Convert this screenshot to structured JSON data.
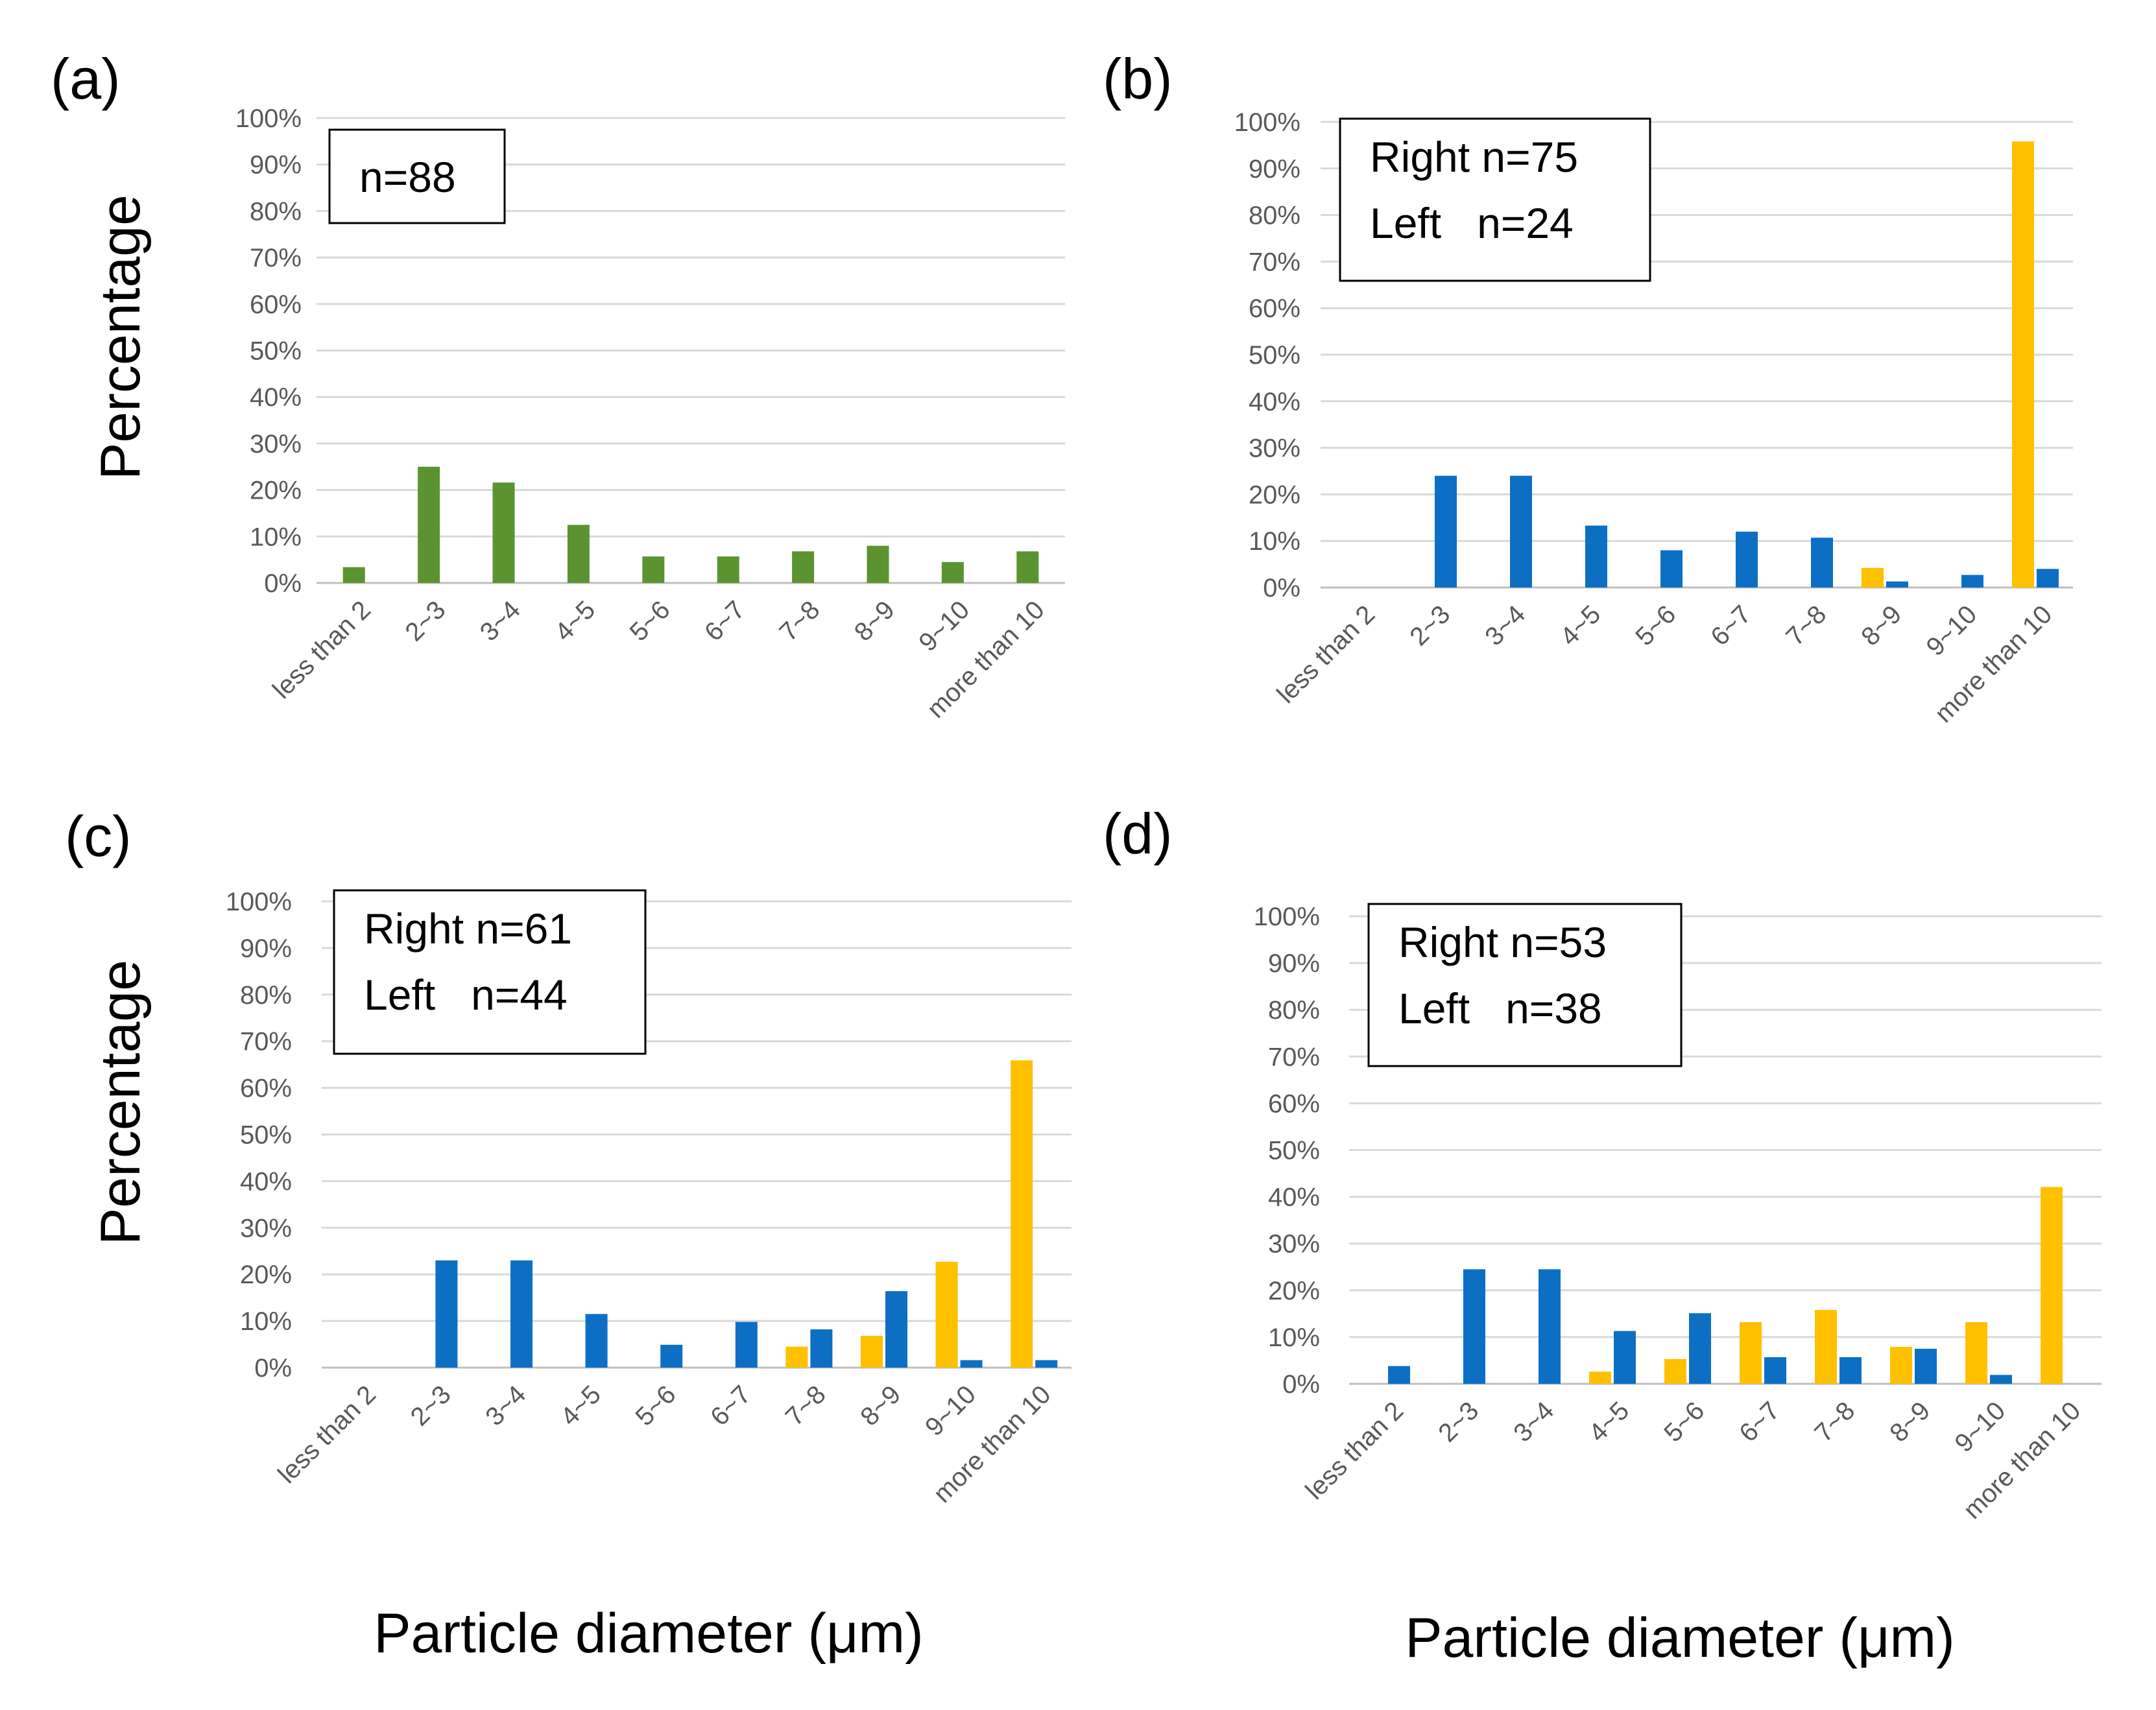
{
  "figure": {
    "ylabel_a": "Percentage",
    "ylabel_c": "Percentage",
    "xlabel_c": "Particle diameter (μm)",
    "xlabel_d": "Particle diameter (μm)"
  },
  "colors": {
    "single": "#5b9331",
    "right": "#0d6fc4",
    "left": "#ffc000"
  },
  "chart_data": [
    {
      "panel": "(a)",
      "type": "bar",
      "categories": [
        "less than 2",
        "2~3",
        "3~4",
        "4~5",
        "5~6",
        "6~7",
        "7~8",
        "8~9",
        "9~10",
        "more than 10"
      ],
      "series": [
        {
          "name": "n=88",
          "color": "#5b9331",
          "values": [
            3.4,
            25.0,
            21.6,
            12.5,
            5.7,
            5.7,
            6.8,
            8.0,
            4.5,
            6.8
          ]
        }
      ],
      "legend": [
        "n=88"
      ],
      "yticks": [
        "0%",
        "10%",
        "20%",
        "30%",
        "40%",
        "50%",
        "60%",
        "70%",
        "80%",
        "90%",
        "100%"
      ],
      "ylim": [
        0,
        100
      ],
      "ylabel": "Percentage"
    },
    {
      "panel": "(b)",
      "type": "bar",
      "categories": [
        "less than 2",
        "2~3",
        "3~4",
        "4~5",
        "5~6",
        "6~7",
        "7~8",
        "8~9",
        "9~10",
        "more than 10"
      ],
      "series": [
        {
          "name": "Left",
          "color": "#ffc000",
          "values": [
            0,
            0,
            0,
            0,
            0,
            0,
            0,
            4.2,
            0,
            95.8
          ]
        },
        {
          "name": "Right",
          "color": "#0d6fc4",
          "values": [
            0,
            24.0,
            24.0,
            13.3,
            8.0,
            12.0,
            10.7,
            1.3,
            2.7,
            4.0
          ]
        }
      ],
      "legend": [
        "Right n=75",
        "Left   n=24"
      ],
      "yticks": [
        "0%",
        "10%",
        "20%",
        "30%",
        "40%",
        "50%",
        "60%",
        "70%",
        "80%",
        "90%",
        "100%"
      ],
      "ylim": [
        0,
        100
      ]
    },
    {
      "panel": "(c)",
      "type": "bar",
      "categories": [
        "less than 2",
        "2~3",
        "3~4",
        "4~5",
        "5~6",
        "6~7",
        "7~8",
        "8~9",
        "9~10",
        "more than 10"
      ],
      "series": [
        {
          "name": "Left",
          "color": "#ffc000",
          "values": [
            0,
            0,
            0,
            0,
            0,
            0,
            4.5,
            6.8,
            22.7,
            65.9
          ]
        },
        {
          "name": "Right",
          "color": "#0d6fc4",
          "values": [
            0,
            23.0,
            23.0,
            11.5,
            4.9,
            9.8,
            8.2,
            16.4,
            1.6,
            1.6
          ]
        }
      ],
      "legend": [
        "Right n=61",
        "Left   n=44"
      ],
      "yticks": [
        "0%",
        "10%",
        "20%",
        "30%",
        "40%",
        "50%",
        "60%",
        "70%",
        "80%",
        "90%",
        "100%"
      ],
      "ylim": [
        0,
        100
      ],
      "ylabel": "Percentage",
      "xlabel": "Particle diameter (μm)"
    },
    {
      "panel": "(d)",
      "type": "bar",
      "categories": [
        "less than 2",
        "2~3",
        "3~4",
        "4~5",
        "5~6",
        "6~7",
        "7~8",
        "8~9",
        "9~10",
        "more than 10"
      ],
      "series": [
        {
          "name": "Left",
          "color": "#ffc000",
          "values": [
            0,
            0,
            0,
            2.6,
            5.3,
            13.2,
            15.8,
            7.9,
            13.2,
            42.1
          ]
        },
        {
          "name": "Right",
          "color": "#0d6fc4",
          "values": [
            3.8,
            24.5,
            24.5,
            11.3,
            15.1,
            5.7,
            5.7,
            7.5,
            1.9,
            0
          ]
        }
      ],
      "legend": [
        "Right n=53",
        "Left   n=38"
      ],
      "yticks": [
        "0%",
        "10%",
        "20%",
        "30%",
        "40%",
        "50%",
        "60%",
        "70%",
        "80%",
        "90%",
        "100%"
      ],
      "ylim": [
        0,
        100
      ],
      "xlabel": "Particle diameter (μm)"
    }
  ]
}
